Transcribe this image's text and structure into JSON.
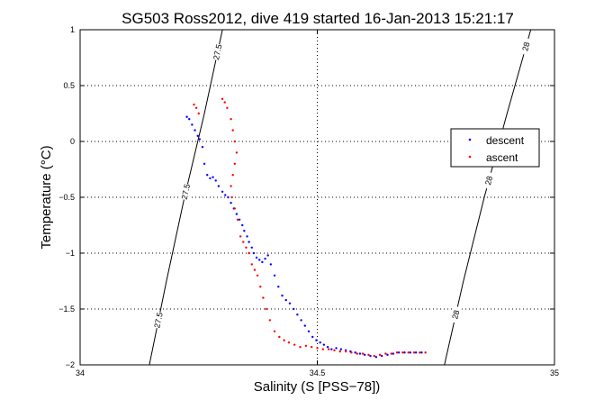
{
  "chart_data": {
    "type": "scatter",
    "title": "SG503 Ross2012, dive 419 started 16-Jan-2013 15:21:17",
    "xlabel": "Salinity (S [PSS−78])",
    "ylabel": "Temperature (°C)",
    "xlim": [
      34,
      35
    ],
    "ylim": [
      -2,
      1
    ],
    "x_ticks": [
      34,
      34.5,
      35
    ],
    "x_tick_labels": [
      "34",
      "34.5",
      "35"
    ],
    "y_ticks": [
      -2,
      -1.5,
      -1,
      -0.5,
      0,
      0.5,
      1
    ],
    "y_tick_labels": [
      "−2",
      "−1.5",
      "−1",
      "−0.5",
      "0",
      "0.5",
      "1"
    ],
    "grid": true,
    "legend_position": "right",
    "series": [
      {
        "name": "descent",
        "color": "#0000ff",
        "marker": "dot",
        "x": [
          34.225,
          34.23,
          34.236,
          34.242,
          34.248,
          34.252,
          34.258,
          34.262,
          34.268,
          34.274,
          34.28,
          34.286,
          34.292,
          34.3,
          34.306,
          34.312,
          34.318,
          34.324,
          34.33,
          34.336,
          34.342,
          34.346,
          34.352,
          34.356,
          34.362,
          34.366,
          34.372,
          34.378,
          34.384,
          34.39,
          34.396,
          34.402,
          34.41,
          34.418,
          34.426,
          34.434,
          34.442,
          34.45,
          34.458,
          34.466,
          34.474,
          34.482,
          34.49,
          34.498,
          34.506,
          34.514,
          34.522,
          34.53,
          34.54,
          34.55,
          34.56,
          34.57,
          34.58,
          34.59,
          34.6,
          34.612,
          34.624,
          34.636,
          34.648,
          34.66,
          34.672,
          34.684,
          34.696,
          34.708,
          34.72
        ],
        "y": [
          0.22,
          0.2,
          0.15,
          0.1,
          0.05,
          0.02,
          -0.05,
          -0.2,
          -0.3,
          -0.33,
          -0.32,
          -0.35,
          -0.4,
          -0.45,
          -0.48,
          -0.5,
          -0.55,
          -0.6,
          -0.65,
          -0.7,
          -0.75,
          -0.8,
          -0.85,
          -0.9,
          -0.95,
          -1.0,
          -1.04,
          -1.06,
          -1.08,
          -1.05,
          -1.02,
          -1.1,
          -1.2,
          -1.3,
          -1.38,
          -1.42,
          -1.45,
          -1.5,
          -1.55,
          -1.6,
          -1.65,
          -1.7,
          -1.75,
          -1.78,
          -1.8,
          -1.82,
          -1.84,
          -1.86,
          -1.85,
          -1.86,
          -1.87,
          -1.88,
          -1.89,
          -1.9,
          -1.91,
          -1.92,
          -1.93,
          -1.92,
          -1.91,
          -1.9,
          -1.89,
          -1.89,
          -1.89,
          -1.89,
          -1.89
        ]
      },
      {
        "name": "ascent",
        "color": "#ff0000",
        "marker": "dot",
        "x": [
          34.24,
          34.245,
          34.25,
          34.3,
          34.305,
          34.31,
          34.318,
          34.322,
          34.326,
          34.33,
          34.326,
          34.322,
          34.318,
          34.32,
          34.326,
          34.332,
          34.338,
          34.344,
          34.35,
          34.356,
          34.362,
          34.368,
          34.374,
          34.38,
          34.386,
          34.392,
          34.4,
          34.41,
          34.42,
          34.43,
          34.44,
          34.452,
          34.464,
          34.476,
          34.488,
          34.5,
          34.512,
          34.524,
          34.536,
          34.548,
          34.56,
          34.572,
          34.584,
          34.596,
          34.608,
          34.62,
          34.632,
          34.644,
          34.656,
          34.668,
          34.68,
          34.692,
          34.704,
          34.716,
          34.728
        ],
        "y": [
          0.33,
          0.3,
          0.25,
          0.38,
          0.35,
          0.3,
          0.2,
          0.1,
          0.0,
          -0.1,
          -0.2,
          -0.3,
          -0.4,
          -0.5,
          -0.6,
          -0.7,
          -0.85,
          -0.9,
          -0.95,
          -1.0,
          -1.1,
          -1.15,
          -1.2,
          -1.3,
          -1.4,
          -1.5,
          -1.6,
          -1.7,
          -1.75,
          -1.78,
          -1.8,
          -1.82,
          -1.84,
          -1.83,
          -1.84,
          -1.85,
          -1.86,
          -1.86,
          -1.87,
          -1.88,
          -1.88,
          -1.89,
          -1.9,
          -1.9,
          -1.91,
          -1.92,
          -1.91,
          -1.9,
          -1.9,
          -1.89,
          -1.89,
          -1.89,
          -1.89,
          -1.89,
          -1.89
        ]
      }
    ],
    "contours": [
      {
        "label": "27.5",
        "x": [
          34.146,
          34.182,
          34.22,
          34.262,
          34.3
        ],
        "y": [
          -2,
          -1.25,
          -0.5,
          0.25,
          1
        ],
        "labels_at": [
          -1.6,
          -0.45,
          0.8
        ]
      },
      {
        "label": "28",
        "x": [
          34.768,
          34.808,
          34.852,
          34.9,
          34.95
        ],
        "y": [
          -2,
          -1.25,
          -0.5,
          0.25,
          1
        ],
        "labels_at": [
          -1.55,
          -0.35,
          0.85
        ]
      }
    ]
  }
}
